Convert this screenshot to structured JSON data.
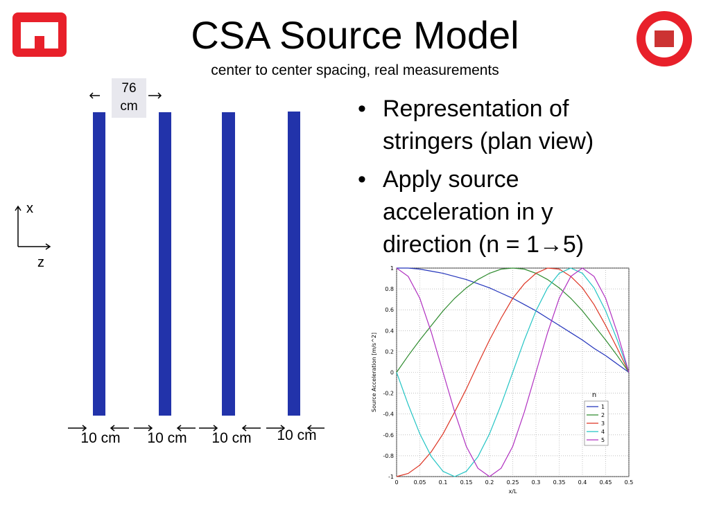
{
  "header": {
    "title": "CSA Source Model",
    "subtitle": "center to center spacing, real measurements"
  },
  "diagram": {
    "spacing_label": "76 cm",
    "width_labels": [
      "10 cm",
      "10 cm",
      "10 cm",
      "10 cm"
    ],
    "axis_up": "x",
    "axis_right": "z"
  },
  "bullets": [
    "Representation of stringers (plan view)",
    "Apply source acceleration in y direction (n = 1→5)"
  ],
  "chart_data": {
    "type": "line",
    "xlabel": "x/L",
    "ylabel": "Source Acceleration [m/s^2]",
    "legend_title": "n",
    "legend": "lower right",
    "grid": true,
    "x": [
      0,
      0.025,
      0.05,
      0.075,
      0.1,
      0.125,
      0.15,
      0.175,
      0.2,
      0.225,
      0.25,
      0.275,
      0.3,
      0.325,
      0.35,
      0.375,
      0.4,
      0.425,
      0.45,
      0.475,
      0.5
    ],
    "xlim": [
      0,
      0.5
    ],
    "xticks": [
      0,
      0.05,
      0.1,
      0.15,
      0.2,
      0.25,
      0.3,
      0.35,
      0.4,
      0.45,
      0.5
    ],
    "ylim": [
      -1,
      1
    ],
    "yticks": [
      -1,
      -0.8,
      -0.6,
      -0.4,
      -0.2,
      0,
      0.2,
      0.4,
      0.6,
      0.8,
      1
    ],
    "series": [
      {
        "name": "1",
        "color": "#2233bb",
        "values": [
          1,
          1,
          0.99,
          0.97,
          0.95,
          0.92,
          0.89,
          0.85,
          0.81,
          0.76,
          0.71,
          0.65,
          0.59,
          0.52,
          0.45,
          0.38,
          0.31,
          0.23,
          0.16,
          0.08,
          0
        ]
      },
      {
        "name": "2",
        "color": "#2e8b2e",
        "values": [
          0,
          0.16,
          0.31,
          0.45,
          0.59,
          0.71,
          0.81,
          0.89,
          0.95,
          0.99,
          1,
          0.99,
          0.95,
          0.89,
          0.81,
          0.71,
          0.59,
          0.45,
          0.31,
          0.16,
          0
        ]
      },
      {
        "name": "3",
        "color": "#dd3322",
        "values": [
          -1,
          -0.97,
          -0.89,
          -0.76,
          -0.59,
          -0.38,
          -0.16,
          0.08,
          0.31,
          0.52,
          0.71,
          0.85,
          0.95,
          1,
          0.99,
          0.92,
          0.81,
          0.65,
          0.45,
          0.23,
          0
        ]
      },
      {
        "name": "4",
        "color": "#22c4c4",
        "values": [
          0,
          -0.31,
          -0.59,
          -0.81,
          -0.95,
          -1,
          -0.95,
          -0.81,
          -0.59,
          -0.31,
          0,
          0.31,
          0.59,
          0.81,
          0.95,
          1,
          0.95,
          0.81,
          0.59,
          0.31,
          0
        ]
      },
      {
        "name": "5",
        "color": "#b030c0",
        "values": [
          1,
          0.92,
          0.71,
          0.38,
          0,
          -0.38,
          -0.71,
          -0.92,
          -1,
          -0.92,
          -0.71,
          -0.38,
          0,
          0.38,
          0.71,
          0.92,
          1,
          0.92,
          0.71,
          0.38,
          0
        ]
      }
    ]
  }
}
